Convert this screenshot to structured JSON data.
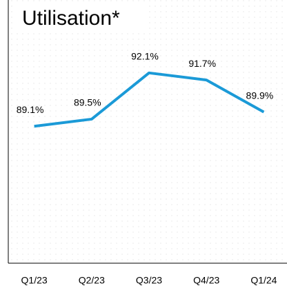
{
  "chart_data": {
    "type": "line",
    "title": "Utilisation*",
    "categories": [
      "Q1/23",
      "Q2/23",
      "Q3/23",
      "Q4/23",
      "Q1/24"
    ],
    "series": [
      {
        "name": "Utilisation",
        "color": "#1b9ad7",
        "values": [
          89.1,
          89.5,
          92.1,
          91.7,
          89.9
        ],
        "value_labels": [
          "89.1%",
          "89.5%",
          "92.1%",
          "91.7%",
          "89.9%"
        ]
      }
    ],
    "ylim": [
      81.4,
      96.2
    ]
  }
}
